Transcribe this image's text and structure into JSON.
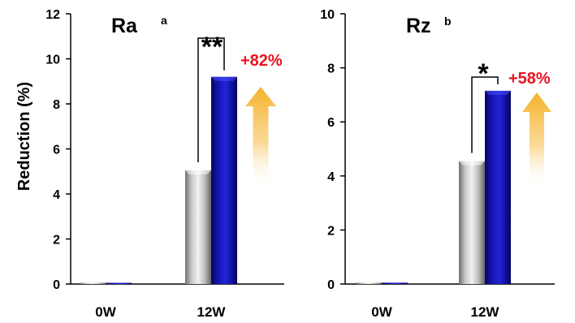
{
  "figure": {
    "ylabel": "Reduction (%)",
    "colors": {
      "gray": "#a8a8a8",
      "blue": "#1010a8",
      "accent": "#e8141e",
      "arrow": "#f6b830"
    }
  },
  "chart_data": [
    {
      "type": "bar",
      "title": "Ra",
      "title_superscript": "a",
      "ylabel": "Reduction (%)",
      "ylim": [
        0,
        12
      ],
      "yticks": [
        0,
        2,
        4,
        6,
        8,
        10,
        12
      ],
      "categories": [
        "0W",
        "12W"
      ],
      "series": [
        {
          "values": [
            0.05,
            5.05
          ],
          "color": "gray"
        },
        {
          "values": [
            0.05,
            9.2
          ],
          "color": "blue"
        }
      ],
      "significance": "**",
      "increase_label": "+82%"
    },
    {
      "type": "bar",
      "title": "Rz",
      "title_superscript": "b",
      "ylabel": "",
      "ylim": [
        0,
        10
      ],
      "yticks": [
        0,
        2,
        4,
        6,
        8,
        10
      ],
      "categories": [
        "0W",
        "12W"
      ],
      "series": [
        {
          "values": [
            0.05,
            4.55
          ],
          "color": "gray"
        },
        {
          "values": [
            0.05,
            7.15
          ],
          "color": "blue"
        }
      ],
      "significance": "*",
      "increase_label": "+58%"
    }
  ]
}
